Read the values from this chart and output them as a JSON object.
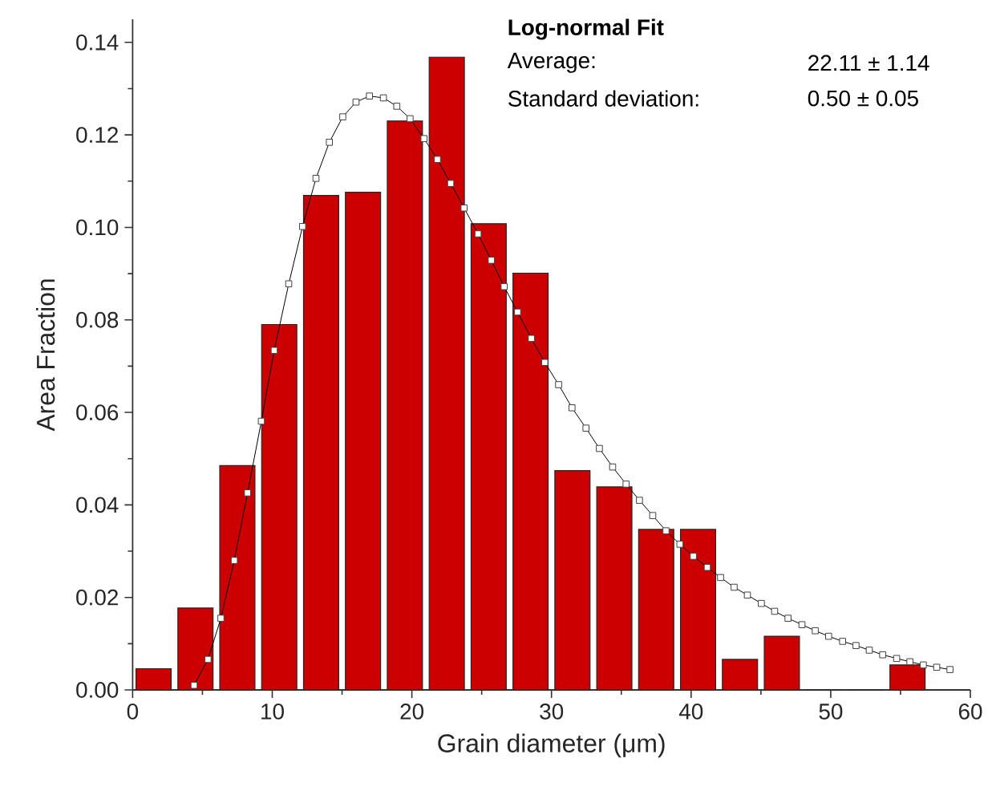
{
  "chart_data": {
    "type": "histogram",
    "xlabel": "Grain diameter (μm)",
    "ylabel": "Area Fraction",
    "bins": [
      0,
      3,
      6,
      9,
      12,
      15,
      18,
      21,
      24,
      27,
      30,
      33,
      36,
      39,
      42,
      45,
      48,
      51,
      54,
      57
    ],
    "values": [
      0.0046,
      0.0177,
      0.0485,
      0.079,
      0.1069,
      0.1076,
      0.123,
      0.1368,
      0.1008,
      0.0901,
      0.0474,
      0.0439,
      0.0347,
      0.0347,
      0.0066,
      0.0116,
      0,
      0,
      0.0054
    ],
    "color": "#cc0000",
    "series": [
      {
        "type": "line",
        "color": "#000000",
        "marker": "square",
        "x": [
          4.4,
          5.4,
          6.32,
          7.28,
          8.23,
          9.22,
          10.14,
          11.18,
          12.17,
          13.13,
          14.09,
          15.05,
          16.0,
          16.96,
          17.96,
          18.92,
          19.87,
          20.87,
          21.83,
          22.78,
          23.74,
          24.74,
          25.69,
          26.61,
          27.57,
          28.56,
          29.52,
          30.51,
          31.47,
          32.47,
          33.43,
          34.38,
          35.34,
          36.3,
          37.25,
          38.2,
          39.2,
          40.16,
          41.16,
          42.11,
          43.08,
          44.03,
          45.03,
          45.98,
          46.94,
          47.94,
          48.89,
          49.85,
          50.85,
          51.81,
          52.76,
          53.72,
          54.72,
          55.67,
          56.63,
          57.59,
          58.54
        ],
        "values": [
          0.001,
          0.0066,
          0.0155,
          0.028,
          0.0426,
          0.0581,
          0.0734,
          0.0878,
          0.1002,
          0.1106,
          0.1184,
          0.1239,
          0.1271,
          0.1284,
          0.128,
          0.1262,
          0.1235,
          0.1192,
          0.1147,
          0.1095,
          0.1042,
          0.0986,
          0.0929,
          0.0872,
          0.0817,
          0.076,
          0.0708,
          0.066,
          0.061,
          0.0566,
          0.0522,
          0.0482,
          0.0445,
          0.041,
          0.0377,
          0.0344,
          0.0315,
          0.0289,
          0.0265,
          0.0243,
          0.0222,
          0.0205,
          0.0187,
          0.017,
          0.0155,
          0.0141,
          0.0128,
          0.0116,
          0.0105,
          0.0096,
          0.0086,
          0.0076,
          0.0068,
          0.0061,
          0.0054,
          0.0049,
          0.0044
        ]
      }
    ],
    "xlim": [
      0,
      60
    ],
    "ylim": [
      0,
      0.145
    ],
    "xticks": [
      0,
      10,
      20,
      30,
      40,
      50,
      60
    ],
    "yticks": [
      {
        "value": 0,
        "label": "0.00"
      },
      {
        "value": 0.02,
        "label": "0.02"
      },
      {
        "value": 0.04,
        "label": "0.04"
      },
      {
        "value": 0.06,
        "label": "0.06"
      },
      {
        "value": 0.08,
        "label": "0.08"
      },
      {
        "value": 0.1,
        "label": "0.10"
      },
      {
        "value": 0.12,
        "label": "0.12"
      },
      {
        "value": 0.14,
        "label": "0.14"
      }
    ],
    "annotations": [
      "Log-normal Fit",
      "Average:",
      "22.11 ± 1.14",
      "Standard deviation:",
      "0.50 ± 0.05"
    ]
  }
}
